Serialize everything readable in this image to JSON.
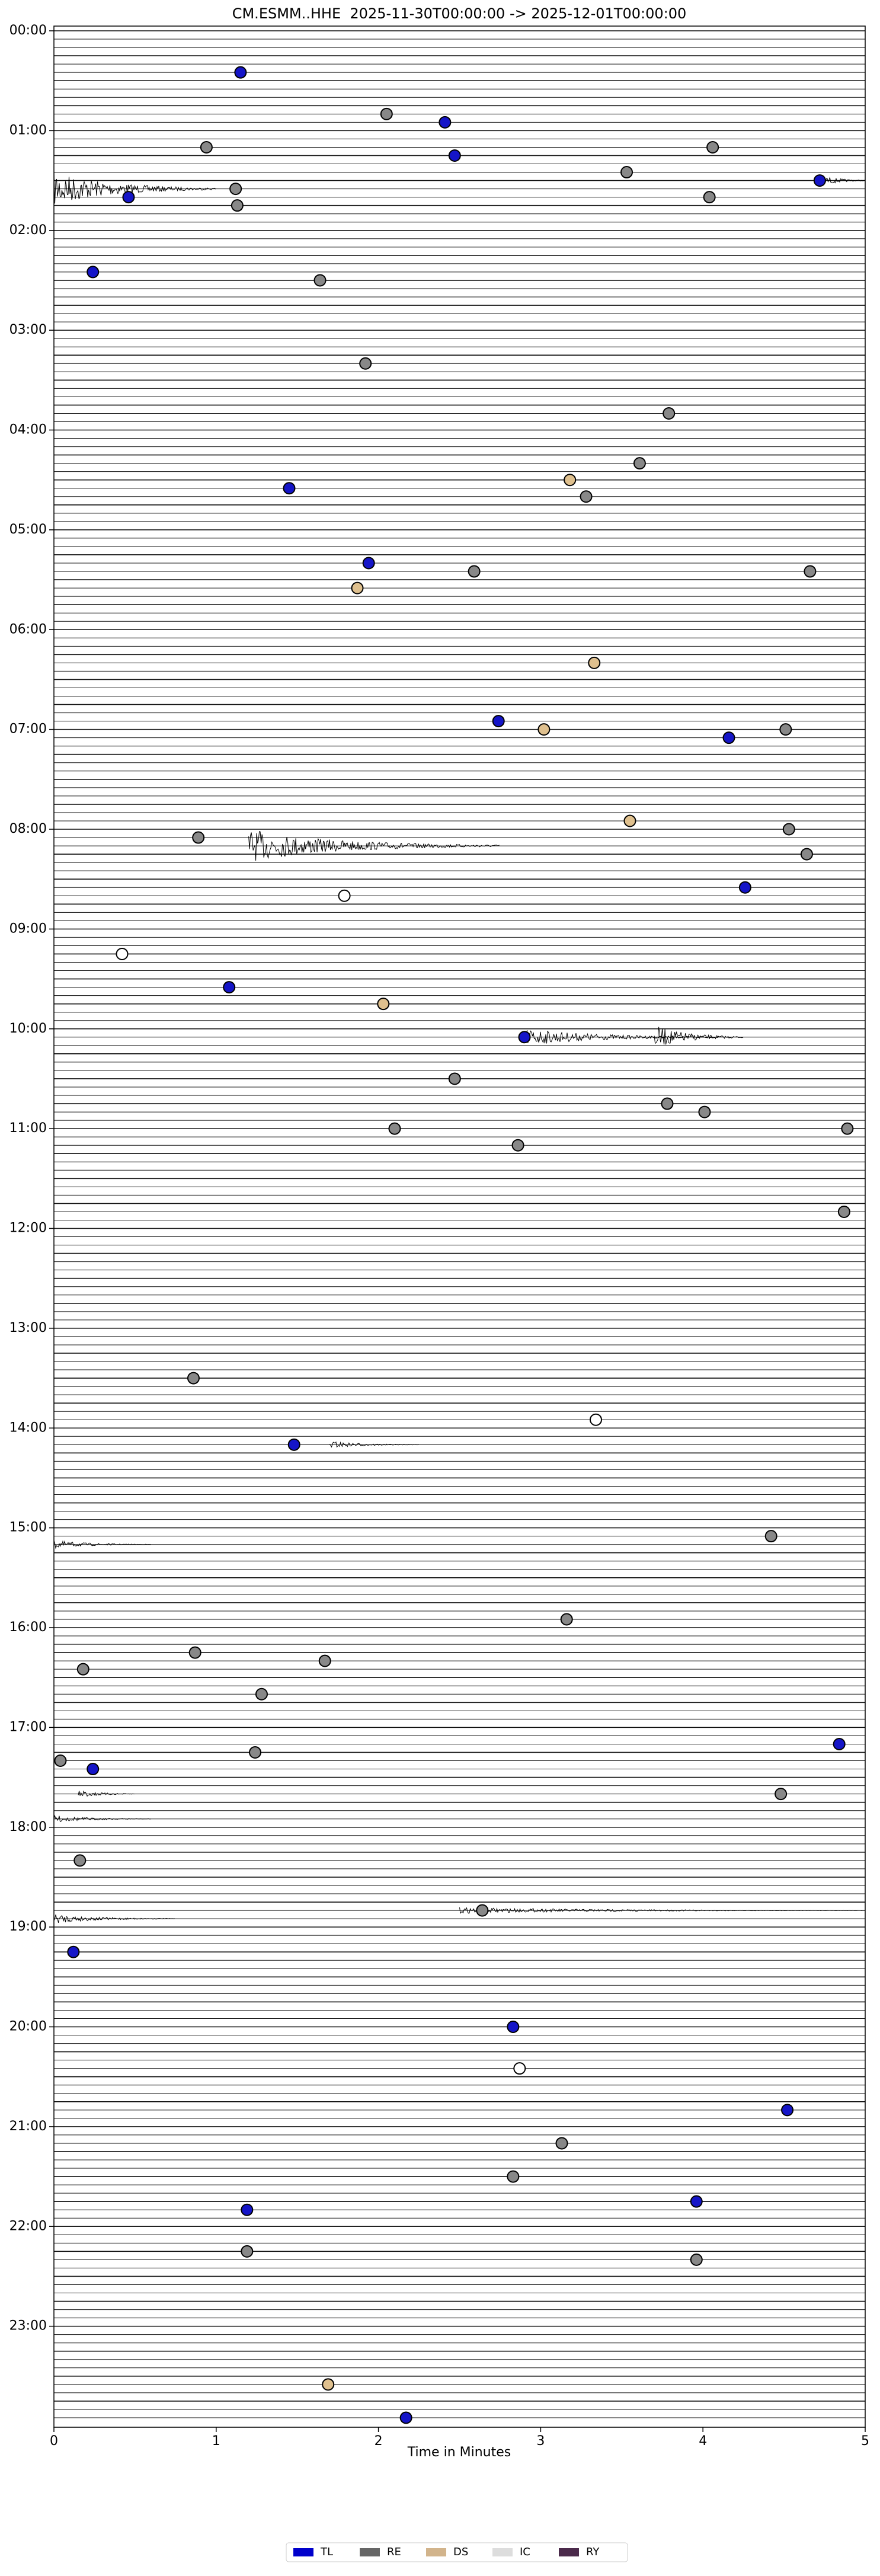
{
  "chart_data": {
    "type": "helicorder",
    "title": "CM.ESMM..HHE  2025-11-30T00:00:00 -> 2025-12-01T00:00:00",
    "xlabel": "Time in Minutes",
    "xlim": [
      0,
      5
    ],
    "xticks": [
      0,
      1,
      2,
      3,
      4,
      5
    ],
    "ylim": [
      0,
      1440
    ],
    "y_inverted": true,
    "yticks": [
      {
        "value": 0,
        "label": "00:00"
      },
      {
        "value": 60,
        "label": "01:00"
      },
      {
        "value": 120,
        "label": "02:00"
      },
      {
        "value": 180,
        "label": "03:00"
      },
      {
        "value": 240,
        "label": "04:00"
      },
      {
        "value": 300,
        "label": "05:00"
      },
      {
        "value": 360,
        "label": "06:00"
      },
      {
        "value": 420,
        "label": "07:00"
      },
      {
        "value": 480,
        "label": "08:00"
      },
      {
        "value": 540,
        "label": "09:00"
      },
      {
        "value": 600,
        "label": "10:00"
      },
      {
        "value": 660,
        "label": "11:00"
      },
      {
        "value": 720,
        "label": "12:00"
      },
      {
        "value": 780,
        "label": "13:00"
      },
      {
        "value": 840,
        "label": "14:00"
      },
      {
        "value": 900,
        "label": "15:00"
      },
      {
        "value": 960,
        "label": "16:00"
      },
      {
        "value": 1020,
        "label": "17:00"
      },
      {
        "value": 1080,
        "label": "18:00"
      },
      {
        "value": 1140,
        "label": "19:00"
      },
      {
        "value": 1200,
        "label": "20:00"
      },
      {
        "value": 1260,
        "label": "21:00"
      },
      {
        "value": 1320,
        "label": "22:00"
      },
      {
        "value": 1380,
        "label": "23:00"
      }
    ],
    "legend_position": "bottom",
    "series": [
      {
        "name": "TL",
        "color": "#0000cc",
        "marker_color": "#1515c8",
        "x": [
          1.15,
          2.41,
          2.47,
          0.46,
          4.72,
          0.24,
          1.45,
          1.94,
          2.74,
          4.16,
          4.26,
          1.08,
          2.9,
          1.48,
          4.84,
          0.24,
          0.12,
          2.83,
          4.52,
          1.19,
          3.96,
          2.17
        ],
        "y": [
          25,
          55,
          75,
          100,
          90,
          145,
          275,
          320,
          415,
          425,
          515,
          575,
          605,
          850,
          1030,
          1045,
          1155,
          1200,
          1250,
          1310,
          1305,
          1435
        ]
      },
      {
        "name": "RE",
        "color": "#666666",
        "marker_color": "#888888",
        "x": [
          2.05,
          0.94,
          4.06,
          3.53,
          1.12,
          4.04,
          1.13,
          1.64,
          1.92,
          3.79,
          3.61,
          3.28,
          2.59,
          4.66,
          4.51,
          0.89,
          4.53,
          4.64,
          2.47,
          3.78,
          4.01,
          2.1,
          2.86,
          4.89,
          4.87,
          0.86,
          4.42,
          3.16,
          0.87,
          1.67,
          0.18,
          1.28,
          0.04,
          1.24,
          4.48,
          0.16,
          2.64,
          3.13,
          2.83,
          1.19,
          3.96
        ],
        "y": [
          50,
          70,
          70,
          85,
          95,
          100,
          105,
          150,
          200,
          230,
          260,
          280,
          325,
          325,
          420,
          485,
          480,
          495,
          630,
          645,
          650,
          660,
          670,
          660,
          710,
          810,
          905,
          955,
          975,
          980,
          985,
          1000,
          1040,
          1035,
          1060,
          1100,
          1130,
          1270,
          1290,
          1335,
          1340
        ]
      },
      {
        "name": "DS",
        "color": "#d2b48c",
        "marker_color": "#dfc08e",
        "x": [
          3.18,
          1.87,
          3.33,
          3.02,
          3.55,
          2.03,
          1.69
        ],
        "y": [
          270,
          335,
          380,
          420,
          475,
          585,
          1415
        ]
      },
      {
        "name": "IC",
        "color": "#dddddd",
        "marker_color": "#ffffff",
        "x": [
          1.79,
          0.42,
          3.34,
          2.87
        ],
        "y": [
          520,
          555,
          835,
          1225
        ]
      },
      {
        "name": "RY",
        "color": "#4b2a4b",
        "marker_color": "#4b2a4b",
        "x": [],
        "y": []
      }
    ]
  }
}
